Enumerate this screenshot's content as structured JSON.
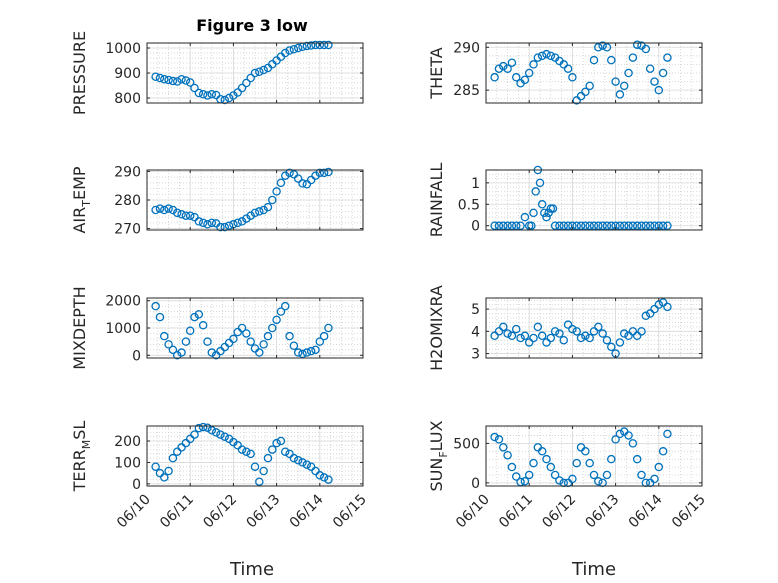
{
  "figure": {
    "title": "Figure 3 low",
    "xlabel": "Time",
    "marker_color": "#0072BD",
    "x_ticks": [
      "06/10",
      "06/11",
      "06/12",
      "06/13",
      "06/14",
      "06/15"
    ]
  },
  "chart_data": [
    {
      "type": "scatter",
      "name": "PRESSURE",
      "ylabel": "PRESSURE",
      "ylim": [
        780,
        1020
      ],
      "yticks": [
        800,
        900,
        1000
      ],
      "xlim": [
        0,
        5
      ],
      "grid": true,
      "x": [
        0.2,
        0.3,
        0.4,
        0.5,
        0.6,
        0.7,
        0.8,
        0.9,
        1.0,
        1.1,
        1.2,
        1.3,
        1.4,
        1.5,
        1.6,
        1.7,
        1.8,
        1.9,
        2.0,
        2.1,
        2.2,
        2.3,
        2.4,
        2.5,
        2.6,
        2.7,
        2.8,
        2.9,
        3.0,
        3.1,
        3.2,
        3.3,
        3.4,
        3.5,
        3.6,
        3.7,
        3.8,
        3.9,
        4.0,
        4.1,
        4.2
      ],
      "y": [
        885,
        880,
        875,
        872,
        868,
        866,
        875,
        870,
        862,
        840,
        820,
        815,
        810,
        815,
        812,
        795,
        792,
        800,
        810,
        822,
        840,
        860,
        880,
        900,
        905,
        912,
        920,
        935,
        950,
        965,
        980,
        990,
        995,
        1000,
        1005,
        1008,
        1010,
        1012,
        1012,
        1012,
        1012
      ]
    },
    {
      "type": "scatter",
      "name": "THETA",
      "ylabel": "THETA",
      "ylim": [
        283.5,
        290.5
      ],
      "yticks": [
        285,
        290
      ],
      "xlim": [
        0,
        5
      ],
      "grid": true,
      "x": [
        0.2,
        0.3,
        0.4,
        0.5,
        0.6,
        0.7,
        0.8,
        0.9,
        1.0,
        1.1,
        1.2,
        1.3,
        1.4,
        1.5,
        1.6,
        1.7,
        1.8,
        1.9,
        2.0,
        2.1,
        2.2,
        2.3,
        2.4,
        2.5,
        2.6,
        2.7,
        2.8,
        2.9,
        3.0,
        3.1,
        3.2,
        3.3,
        3.4,
        3.5,
        3.6,
        3.7,
        3.8,
        3.9,
        4.0,
        4.1,
        4.2
      ],
      "y": [
        286.5,
        287.5,
        287.8,
        287.5,
        288.2,
        286.5,
        285.8,
        286.2,
        287.0,
        288.0,
        288.8,
        289.0,
        289.2,
        289.0,
        288.8,
        288.4,
        288.0,
        287.5,
        286.5,
        283.8,
        284.3,
        284.8,
        285.5,
        288.5,
        290.0,
        290.2,
        290.0,
        288.5,
        286.0,
        284.5,
        285.5,
        287.0,
        288.8,
        290.3,
        290.2,
        289.8,
        287.5,
        286.0,
        285.0,
        287.0,
        288.8
      ]
    },
    {
      "type": "scatter",
      "name": "AIR_TEMP",
      "ylabel": "AIR_TEMP",
      "ylim": [
        269.5,
        290.5
      ],
      "yticks": [
        270,
        280,
        290
      ],
      "xlim": [
        0,
        5
      ],
      "grid": true,
      "x": [
        0.2,
        0.3,
        0.4,
        0.5,
        0.6,
        0.7,
        0.8,
        0.9,
        1.0,
        1.1,
        1.2,
        1.3,
        1.4,
        1.5,
        1.6,
        1.7,
        1.8,
        1.9,
        2.0,
        2.1,
        2.2,
        2.3,
        2.4,
        2.5,
        2.6,
        2.7,
        2.8,
        2.9,
        3.0,
        3.1,
        3.2,
        3.3,
        3.4,
        3.5,
        3.6,
        3.7,
        3.8,
        3.9,
        4.0,
        4.1,
        4.2
      ],
      "y": [
        276.5,
        277.0,
        276.5,
        277.0,
        276.5,
        275.5,
        275.0,
        274.5,
        274.5,
        274.0,
        272.5,
        272.0,
        271.5,
        272.0,
        271.8,
        270.5,
        270.5,
        271.0,
        271.5,
        272.0,
        272.5,
        273.5,
        274.5,
        275.5,
        276.0,
        276.5,
        277.5,
        280.0,
        283.0,
        286.0,
        288.5,
        289.5,
        289.0,
        287.5,
        285.8,
        285.5,
        287.0,
        288.5,
        289.5,
        289.5,
        289.8
      ]
    },
    {
      "type": "scatter",
      "name": "RAINFALL",
      "ylabel": "RAINFALL",
      "ylim": [
        -0.1,
        1.3
      ],
      "yticks": [
        0,
        0.5,
        1
      ],
      "xlim": [
        0,
        5
      ],
      "grid": true,
      "x": [
        0.2,
        0.3,
        0.4,
        0.5,
        0.6,
        0.7,
        0.8,
        0.9,
        1.0,
        1.05,
        1.1,
        1.15,
        1.2,
        1.25,
        1.3,
        1.35,
        1.4,
        1.45,
        1.5,
        1.55,
        1.6,
        1.7,
        1.8,
        1.9,
        2.0,
        2.1,
        2.2,
        2.3,
        2.4,
        2.5,
        2.6,
        2.7,
        2.8,
        2.9,
        3.0,
        3.1,
        3.2,
        3.3,
        3.4,
        3.5,
        3.6,
        3.7,
        3.8,
        3.9,
        4.0,
        4.1,
        4.2
      ],
      "y": [
        0,
        0,
        0,
        0,
        0,
        0,
        0,
        0.2,
        0,
        0,
        0.3,
        0.8,
        1.3,
        1.0,
        0.5,
        0.3,
        0.2,
        0.3,
        0.4,
        0.4,
        0,
        0,
        0,
        0,
        0,
        0,
        0,
        0,
        0,
        0,
        0,
        0,
        0,
        0,
        0,
        0,
        0,
        0,
        0,
        0,
        0,
        0,
        0,
        0,
        0,
        0,
        0
      ]
    },
    {
      "type": "scatter",
      "name": "MIXDEPTH",
      "ylabel": "MIXDEPTH",
      "ylim": [
        -100,
        2100
      ],
      "yticks": [
        0,
        1000,
        2000
      ],
      "xlim": [
        0,
        5
      ],
      "grid": true,
      "x": [
        0.2,
        0.3,
        0.4,
        0.5,
        0.6,
        0.7,
        0.8,
        0.9,
        1.0,
        1.1,
        1.2,
        1.3,
        1.4,
        1.5,
        1.6,
        1.7,
        1.8,
        1.9,
        2.0,
        2.1,
        2.2,
        2.3,
        2.4,
        2.5,
        2.6,
        2.7,
        2.8,
        2.9,
        3.0,
        3.1,
        3.2,
        3.3,
        3.4,
        3.5,
        3.6,
        3.7,
        3.8,
        3.9,
        4.0,
        4.1,
        4.2
      ],
      "y": [
        1800,
        1400,
        700,
        400,
        200,
        0,
        100,
        500,
        900,
        1400,
        1500,
        1100,
        500,
        100,
        0,
        150,
        300,
        450,
        600,
        850,
        1000,
        800,
        500,
        250,
        100,
        400,
        700,
        1000,
        1300,
        1600,
        1800,
        700,
        350,
        100,
        50,
        100,
        150,
        200,
        500,
        700,
        1000
      ]
    },
    {
      "type": "scatter",
      "name": "H2OMIXRA",
      "ylabel": "H2OMIXRA",
      "ylim": [
        2.8,
        5.5
      ],
      "yticks": [
        3,
        4,
        5
      ],
      "xlim": [
        0,
        5
      ],
      "grid": true,
      "x": [
        0.2,
        0.3,
        0.4,
        0.5,
        0.6,
        0.7,
        0.8,
        0.9,
        1.0,
        1.1,
        1.2,
        1.3,
        1.4,
        1.5,
        1.6,
        1.7,
        1.8,
        1.9,
        2.0,
        2.1,
        2.2,
        2.3,
        2.4,
        2.5,
        2.6,
        2.7,
        2.8,
        2.9,
        3.0,
        3.1,
        3.2,
        3.3,
        3.4,
        3.5,
        3.6,
        3.7,
        3.8,
        3.9,
        4.0,
        4.1,
        4.2
      ],
      "y": [
        3.8,
        4.0,
        4.2,
        3.9,
        3.8,
        4.1,
        3.7,
        3.8,
        3.5,
        3.7,
        4.2,
        3.8,
        3.5,
        3.7,
        4.0,
        3.9,
        3.6,
        4.3,
        4.1,
        4.0,
        3.7,
        3.8,
        3.7,
        4.0,
        4.2,
        3.9,
        3.6,
        3.3,
        3.0,
        3.5,
        3.9,
        3.8,
        4.0,
        3.8,
        4.0,
        4.7,
        4.8,
        5.0,
        5.2,
        5.3,
        5.1
      ]
    },
    {
      "type": "scatter",
      "name": "TERR_MSL",
      "ylabel": "TERR_MSL",
      "ylim": [
        -10,
        270
      ],
      "yticks": [
        0,
        100,
        200
      ],
      "xlim": [
        0,
        5
      ],
      "grid": true,
      "x": [
        0.2,
        0.3,
        0.4,
        0.5,
        0.6,
        0.7,
        0.8,
        0.9,
        1.0,
        1.1,
        1.2,
        1.3,
        1.4,
        1.5,
        1.6,
        1.7,
        1.8,
        1.9,
        2.0,
        2.1,
        2.2,
        2.3,
        2.4,
        2.5,
        2.6,
        2.7,
        2.8,
        2.9,
        3.0,
        3.1,
        3.2,
        3.3,
        3.4,
        3.5,
        3.6,
        3.7,
        3.8,
        3.9,
        4.0,
        4.1,
        4.2
      ],
      "y": [
        80,
        50,
        30,
        60,
        120,
        150,
        170,
        190,
        210,
        230,
        260,
        265,
        262,
        250,
        240,
        230,
        220,
        210,
        195,
        180,
        160,
        150,
        140,
        80,
        10,
        60,
        120,
        160,
        190,
        200,
        150,
        140,
        120,
        110,
        100,
        90,
        80,
        60,
        40,
        30,
        20
      ]
    },
    {
      "type": "scatter",
      "name": "SUN_FLUX",
      "ylabel": "SUN_FLUX",
      "ylim": [
        -40,
        720
      ],
      "yticks": [
        0,
        500
      ],
      "xlim": [
        0,
        5
      ],
      "grid": true,
      "x": [
        0.2,
        0.3,
        0.4,
        0.5,
        0.6,
        0.7,
        0.8,
        0.9,
        1.0,
        1.1,
        1.2,
        1.3,
        1.4,
        1.5,
        1.6,
        1.7,
        1.8,
        1.9,
        2.0,
        2.1,
        2.2,
        2.3,
        2.4,
        2.5,
        2.6,
        2.7,
        2.8,
        2.9,
        3.0,
        3.1,
        3.2,
        3.3,
        3.4,
        3.5,
        3.6,
        3.7,
        3.8,
        3.9,
        4.0,
        4.1,
        4.2
      ],
      "y": [
        580,
        550,
        450,
        350,
        200,
        80,
        10,
        20,
        100,
        250,
        450,
        400,
        300,
        200,
        100,
        30,
        0,
        0,
        50,
        250,
        450,
        400,
        250,
        100,
        20,
        0,
        100,
        300,
        550,
        620,
        650,
        600,
        500,
        300,
        100,
        0,
        0,
        50,
        200,
        400,
        620
      ]
    }
  ]
}
